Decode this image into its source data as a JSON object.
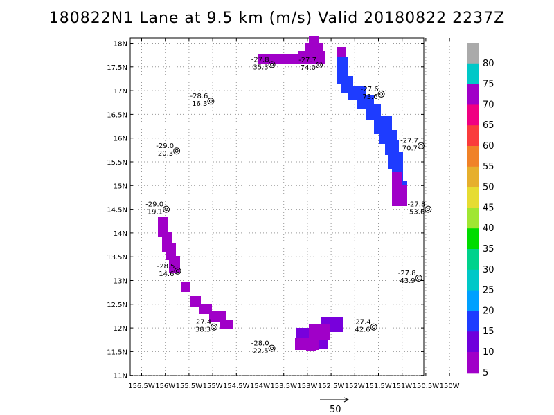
{
  "title": "180822N1 Lane at 9.5 km (m/s) Valid 20180822 2237Z",
  "axes": {
    "lat_labels": [
      "18N",
      "17.5N",
      "17N",
      "16.5N",
      "16N",
      "15.5N",
      "15N",
      "14.5N",
      "14N",
      "13.5N",
      "13N",
      "12.5N",
      "12N",
      "11.5N",
      "11N"
    ],
    "lon_labels": [
      "156.5W",
      "156W",
      "155.5W",
      "155W",
      "154.5W",
      "154W",
      "153.5W",
      "153W",
      "152.5W",
      "152W",
      "151.5W",
      "151W",
      "150.5W",
      "150W"
    ],
    "lat_range": [
      11,
      18.1
    ],
    "lon_range": [
      -156.7,
      -149.9
    ]
  },
  "stations": [
    {
      "t": "-27.8",
      "v": "35.3",
      "lon": -153.75,
      "lat": 17.55
    },
    {
      "t": "-27.7",
      "v": "74.0",
      "lon": -152.75,
      "lat": 17.54
    },
    {
      "t": "-28.6",
      "v": "16.3",
      "lon": -155.04,
      "lat": 16.78
    },
    {
      "t": "-27.6",
      "v": "73.6",
      "lon": -151.44,
      "lat": 16.93
    },
    {
      "t": "-29.0",
      "v": "20.3",
      "lon": -155.76,
      "lat": 15.73
    },
    {
      "t": "-27.7",
      "v": "70.7",
      "lon": -150.6,
      "lat": 15.84
    },
    {
      "t": "-29.0",
      "v": "19.1",
      "lon": -155.98,
      "lat": 14.5
    },
    {
      "t": "-27.8",
      "v": "53.6",
      "lon": -150.45,
      "lat": 14.5
    },
    {
      "t": "-28.5",
      "v": "14.6",
      "lon": -155.74,
      "lat": 13.2
    },
    {
      "t": "-27.8",
      "v": "43.9",
      "lon": -150.65,
      "lat": 13.05
    },
    {
      "t": "-27.4",
      "v": "38.3",
      "lon": -154.97,
      "lat": 12.02
    },
    {
      "t": "-27.4",
      "v": "42.6",
      "lon": -151.6,
      "lat": 12.02
    },
    {
      "t": "-28.0",
      "v": "22.5",
      "lon": -153.75,
      "lat": 11.57
    }
  ],
  "colorbar": {
    "labels": [
      "5",
      "10",
      "15",
      "20",
      "25",
      "30",
      "35",
      "40",
      "45",
      "50",
      "55",
      "60",
      "65",
      "70",
      "75",
      "80"
    ],
    "colors": [
      "#a000c8",
      "#6e00dc",
      "#1e3cff",
      "#00a0ff",
      "#00c8c8",
      "#00d28c",
      "#00dc00",
      "#a0e632",
      "#e6dc32",
      "#e6af2d",
      "#f08228",
      "#fa3c3c",
      "#f00082",
      "#a000c8",
      "#00c8c8",
      "#aaaaaa"
    ],
    "top_color": "#aaaaaa"
  },
  "scale_label": "50",
  "colors": {
    "purple": "#a000c8",
    "violet": "#7800dc",
    "blue": "#1e3cff",
    "grid": "#999999"
  }
}
